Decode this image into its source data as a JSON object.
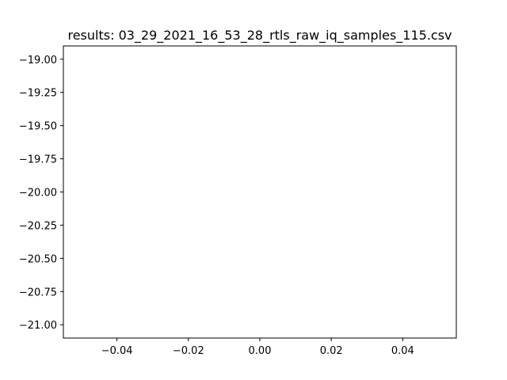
{
  "chart_data": {
    "type": "line",
    "title": "results: 03_29_2021_16_53_28_rtls_raw_iq_samples_115.csv",
    "xlabel": "",
    "ylabel": "",
    "xlim": [
      -0.055,
      0.055
    ],
    "ylim": [
      -21.1,
      -18.9
    ],
    "x_ticks": [
      -0.04,
      -0.02,
      0.0,
      0.02,
      0.04
    ],
    "x_tick_labels": [
      "−0.04",
      "−0.02",
      "0.00",
      "0.02",
      "0.04"
    ],
    "y_ticks": [
      -19.0,
      -19.25,
      -19.5,
      -19.75,
      -20.0,
      -20.25,
      -20.5,
      -20.75,
      -21.0
    ],
    "y_tick_labels": [
      "−19.00",
      "−19.25",
      "−19.50",
      "−19.75",
      "−20.00",
      "−20.25",
      "−20.50",
      "−20.75",
      "−21.00"
    ],
    "series": [],
    "grid": false,
    "legend": "none"
  }
}
